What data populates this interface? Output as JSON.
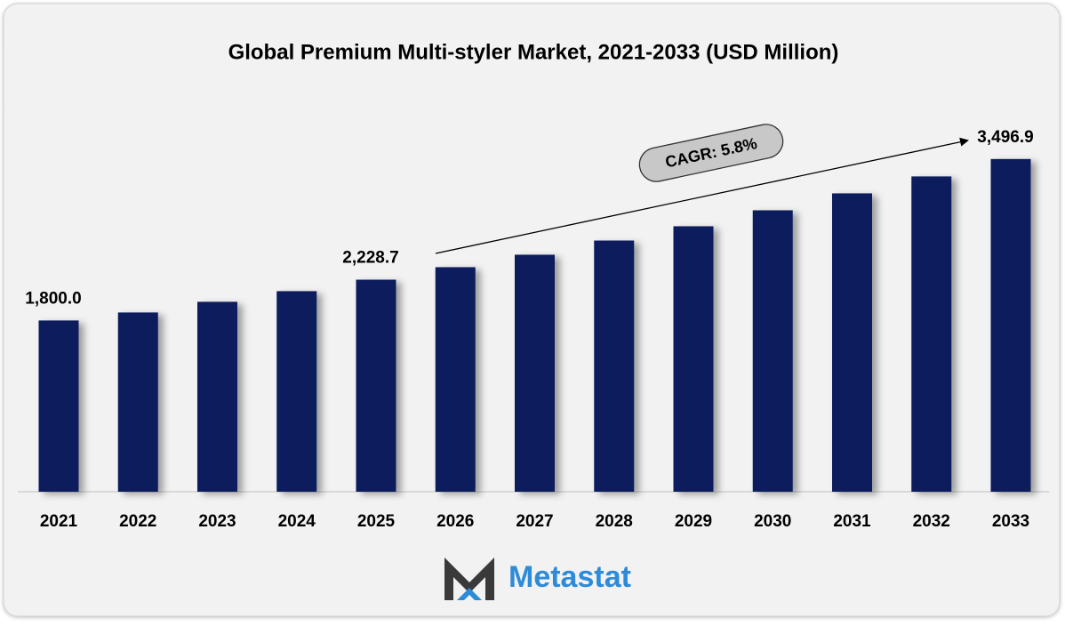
{
  "chart_data": {
    "type": "bar",
    "title": "Global Premium Multi-styler Market, 2021-2033 (USD Million)",
    "categories": [
      "2021",
      "2022",
      "2023",
      "2024",
      "2025",
      "2026",
      "2027",
      "2028",
      "2029",
      "2030",
      "2031",
      "2032",
      "2033"
    ],
    "values": [
      1800.0,
      1884,
      1996,
      2108,
      2228.7,
      2360,
      2491,
      2640,
      2790,
      2958,
      3136,
      3314,
      3496.9
    ],
    "value_labels": [
      "1,800.0",
      null,
      null,
      null,
      "2,228.7",
      null,
      null,
      null,
      null,
      null,
      null,
      null,
      "3,496.9"
    ],
    "color": "#0b1f5c",
    "ylim": [
      0,
      4000
    ],
    "annotation": "CAGR: 5.8%"
  },
  "logo": "Metastat"
}
